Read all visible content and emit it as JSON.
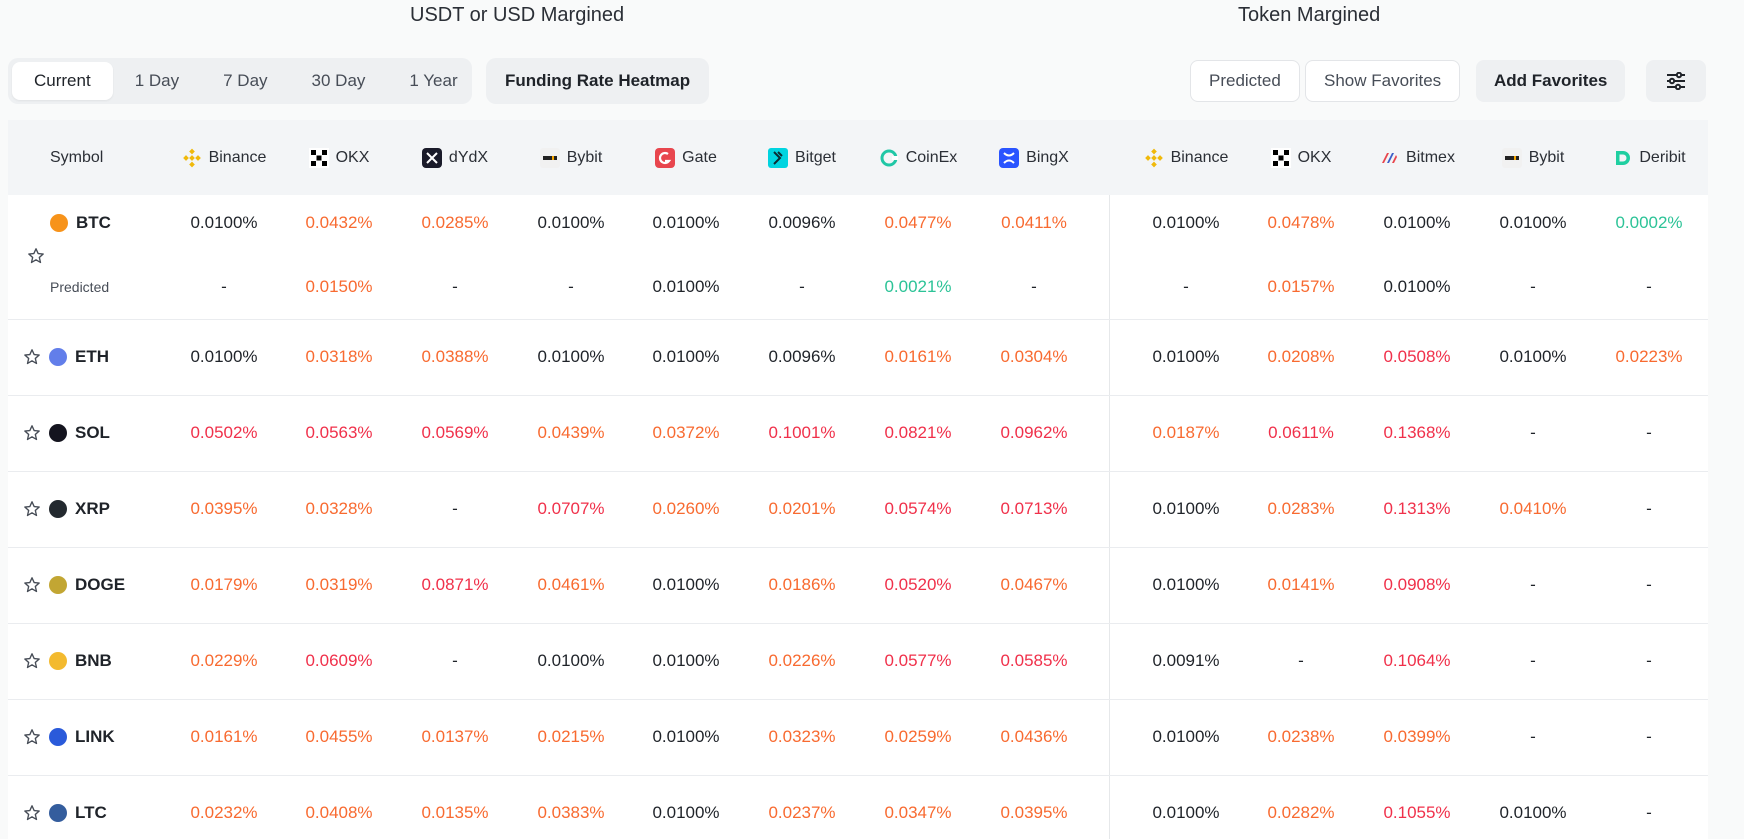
{
  "headers": {
    "usdt": "USDT or USD Margined",
    "token": "Token Margined"
  },
  "range_tabs": [
    "Current",
    "1 Day",
    "7 Day",
    "30 Day",
    "1 Year"
  ],
  "buttons": {
    "heatmap": "Funding Rate Heatmap",
    "predicted": "Predicted",
    "show_favorites": "Show Favorites",
    "add_favorites": "Add Favorites"
  },
  "table": {
    "symbol_header": "Symbol",
    "usdt_exchanges": [
      "Binance",
      "OKX",
      "dYdX",
      "Bybit",
      "Gate",
      "Bitget",
      "CoinEx",
      "BingX"
    ],
    "token_exchanges": [
      "Binance",
      "OKX",
      "Bitmex",
      "Bybit",
      "Deribit"
    ],
    "predicted_label": "Predicted",
    "colors": {
      "pos": "#f86a30",
      "high": "#f0304a",
      "neu": "#1f2329",
      "neg": "#2cc397"
    },
    "rows": [
      {
        "symbol": "BTC",
        "coin_color": "#f7931a",
        "usdt": [
          [
            "0.0100%",
            "neu"
          ],
          [
            "0.0432%",
            "pos"
          ],
          [
            "0.0285%",
            "pos"
          ],
          [
            "0.0100%",
            "neu"
          ],
          [
            "0.0100%",
            "neu"
          ],
          [
            "0.0096%",
            "neu"
          ],
          [
            "0.0477%",
            "pos"
          ],
          [
            "0.0411%",
            "pos"
          ]
        ],
        "token": [
          [
            "0.0100%",
            "neu"
          ],
          [
            "0.0478%",
            "pos"
          ],
          [
            "0.0100%",
            "neu"
          ],
          [
            "0.0100%",
            "neu"
          ],
          [
            "0.0002%",
            "neg"
          ]
        ],
        "predicted_usdt": [
          [
            "-",
            "neu"
          ],
          [
            "0.0150%",
            "pos"
          ],
          [
            "-",
            "neu"
          ],
          [
            "-",
            "neu"
          ],
          [
            "0.0100%",
            "neu"
          ],
          [
            "-",
            "neu"
          ],
          [
            "0.0021%",
            "neg"
          ],
          [
            "-",
            "neu"
          ]
        ],
        "predicted_token": [
          [
            "-",
            "neu"
          ],
          [
            "0.0157%",
            "pos"
          ],
          [
            "0.0100%",
            "neu"
          ],
          [
            "-",
            "neu"
          ],
          [
            "-",
            "neu"
          ]
        ]
      },
      {
        "symbol": "ETH",
        "coin_color": "#627eea",
        "usdt": [
          [
            "0.0100%",
            "neu"
          ],
          [
            "0.0318%",
            "pos"
          ],
          [
            "0.0388%",
            "pos"
          ],
          [
            "0.0100%",
            "neu"
          ],
          [
            "0.0100%",
            "neu"
          ],
          [
            "0.0096%",
            "neu"
          ],
          [
            "0.0161%",
            "pos"
          ],
          [
            "0.0304%",
            "pos"
          ]
        ],
        "token": [
          [
            "0.0100%",
            "neu"
          ],
          [
            "0.0208%",
            "pos"
          ],
          [
            "0.0508%",
            "high"
          ],
          [
            "0.0100%",
            "neu"
          ],
          [
            "0.0223%",
            "pos"
          ]
        ]
      },
      {
        "symbol": "SOL",
        "coin_color": "#14141f",
        "usdt": [
          [
            "0.0502%",
            "high"
          ],
          [
            "0.0563%",
            "high"
          ],
          [
            "0.0569%",
            "high"
          ],
          [
            "0.0439%",
            "pos"
          ],
          [
            "0.0372%",
            "pos"
          ],
          [
            "0.1001%",
            "high"
          ],
          [
            "0.0821%",
            "high"
          ],
          [
            "0.0962%",
            "high"
          ]
        ],
        "token": [
          [
            "0.0187%",
            "pos"
          ],
          [
            "0.0611%",
            "high"
          ],
          [
            "0.1368%",
            "high"
          ],
          [
            "-",
            "neu"
          ],
          [
            "-",
            "neu"
          ]
        ]
      },
      {
        "symbol": "XRP",
        "coin_color": "#23292f",
        "usdt": [
          [
            "0.0395%",
            "pos"
          ],
          [
            "0.0328%",
            "pos"
          ],
          [
            "-",
            "neu"
          ],
          [
            "0.0707%",
            "high"
          ],
          [
            "0.0260%",
            "pos"
          ],
          [
            "0.0201%",
            "pos"
          ],
          [
            "0.0574%",
            "high"
          ],
          [
            "0.0713%",
            "high"
          ]
        ],
        "token": [
          [
            "0.0100%",
            "neu"
          ],
          [
            "0.0283%",
            "pos"
          ],
          [
            "0.1313%",
            "high"
          ],
          [
            "0.0410%",
            "pos"
          ],
          [
            "-",
            "neu"
          ]
        ]
      },
      {
        "symbol": "DOGE",
        "coin_color": "#c2a633",
        "usdt": [
          [
            "0.0179%",
            "pos"
          ],
          [
            "0.0319%",
            "pos"
          ],
          [
            "0.0871%",
            "high"
          ],
          [
            "0.0461%",
            "pos"
          ],
          [
            "0.0100%",
            "neu"
          ],
          [
            "0.0186%",
            "pos"
          ],
          [
            "0.0520%",
            "high"
          ],
          [
            "0.0467%",
            "pos"
          ]
        ],
        "token": [
          [
            "0.0100%",
            "neu"
          ],
          [
            "0.0141%",
            "pos"
          ],
          [
            "0.0908%",
            "high"
          ],
          [
            "-",
            "neu"
          ],
          [
            "-",
            "neu"
          ]
        ]
      },
      {
        "symbol": "BNB",
        "coin_color": "#f3ba2f",
        "usdt": [
          [
            "0.0229%",
            "pos"
          ],
          [
            "0.0609%",
            "high"
          ],
          [
            "-",
            "neu"
          ],
          [
            "0.0100%",
            "neu"
          ],
          [
            "0.0100%",
            "neu"
          ],
          [
            "0.0226%",
            "pos"
          ],
          [
            "0.0577%",
            "high"
          ],
          [
            "0.0585%",
            "high"
          ]
        ],
        "token": [
          [
            "0.0091%",
            "neu"
          ],
          [
            "-",
            "neu"
          ],
          [
            "0.1064%",
            "high"
          ],
          [
            "-",
            "neu"
          ],
          [
            "-",
            "neu"
          ]
        ]
      },
      {
        "symbol": "LINK",
        "coin_color": "#2a5ada",
        "usdt": [
          [
            "0.0161%",
            "pos"
          ],
          [
            "0.0455%",
            "pos"
          ],
          [
            "0.0137%",
            "pos"
          ],
          [
            "0.0215%",
            "pos"
          ],
          [
            "0.0100%",
            "neu"
          ],
          [
            "0.0323%",
            "pos"
          ],
          [
            "0.0259%",
            "pos"
          ],
          [
            "0.0436%",
            "pos"
          ]
        ],
        "token": [
          [
            "0.0100%",
            "neu"
          ],
          [
            "0.0238%",
            "pos"
          ],
          [
            "0.0399%",
            "pos"
          ],
          [
            "-",
            "neu"
          ],
          [
            "-",
            "neu"
          ]
        ]
      },
      {
        "symbol": "LTC",
        "coin_color": "#345d9d",
        "usdt": [
          [
            "0.0232%",
            "pos"
          ],
          [
            "0.0408%",
            "pos"
          ],
          [
            "0.0135%",
            "pos"
          ],
          [
            "0.0383%",
            "pos"
          ],
          [
            "0.0100%",
            "neu"
          ],
          [
            "0.0237%",
            "pos"
          ],
          [
            "0.0347%",
            "pos"
          ],
          [
            "0.0395%",
            "pos"
          ]
        ],
        "token": [
          [
            "0.0100%",
            "neu"
          ],
          [
            "0.0282%",
            "pos"
          ],
          [
            "0.1055%",
            "high"
          ],
          [
            "0.0100%",
            "neu"
          ],
          [
            "-",
            "neu"
          ]
        ]
      }
    ]
  }
}
